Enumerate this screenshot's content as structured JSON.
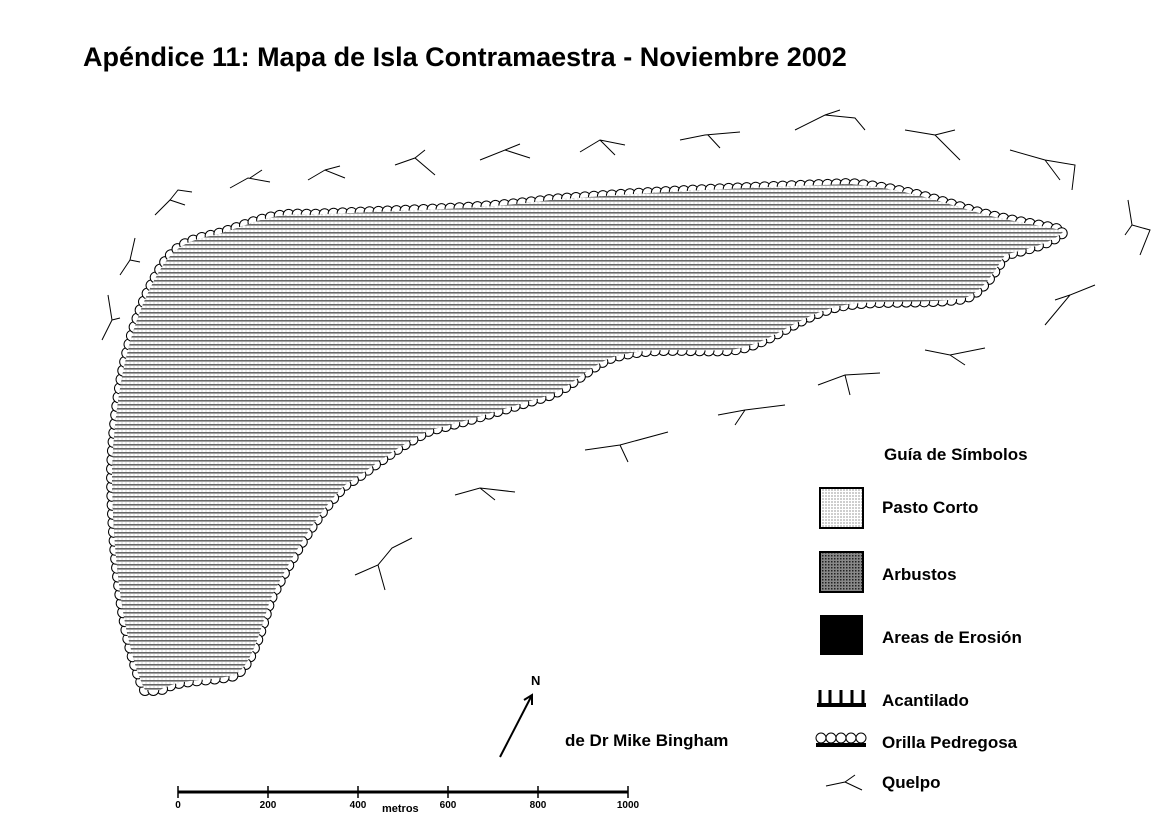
{
  "title": "Apéndice 11: Mapa de Isla Contramaestra - Noviembre 2002",
  "north": "N",
  "author": "de Dr Mike Bingham",
  "legend": {
    "title": "Guía de Símbolos",
    "items": [
      "Pasto Corto",
      "Arbustos",
      "Areas de Erosión",
      "Acantilado",
      "Orilla Pedregosa",
      "Quelpo"
    ]
  },
  "scale": {
    "labels": [
      0,
      200,
      400,
      600,
      800,
      1000
    ],
    "unit": "metros"
  }
}
